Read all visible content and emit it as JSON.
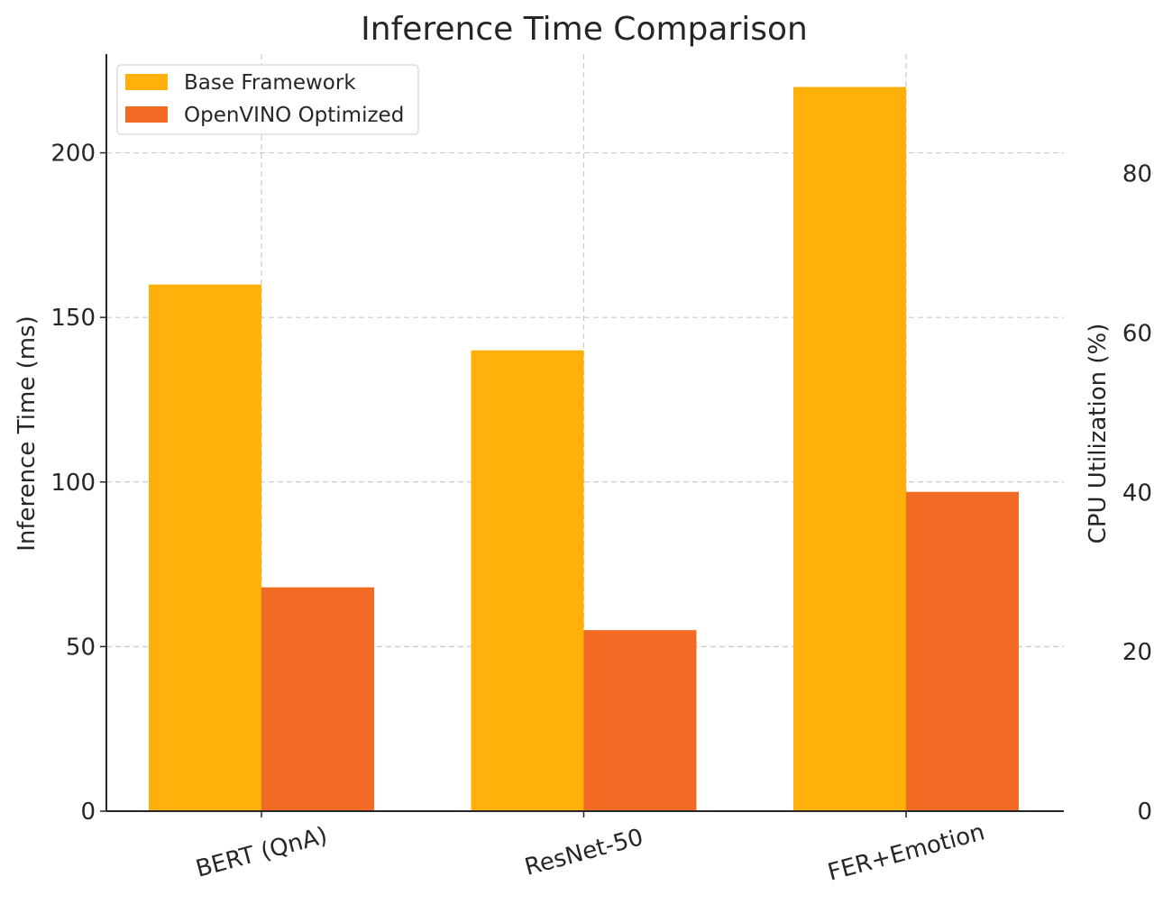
{
  "chart_data": {
    "type": "bar",
    "title": "Inference Time Comparison",
    "xlabel": "",
    "ylabel": "Inference Time (ms)",
    "ylabel_right": "CPU Utilization (%)",
    "categories": [
      "BERT (QnA)",
      "ResNet-50",
      "FER+Emotion"
    ],
    "series": [
      {
        "name": "Base Framework",
        "values": [
          160,
          140,
          220
        ],
        "color": "#FFB00A"
      },
      {
        "name": "OpenVINO Optimized",
        "values": [
          68,
          55,
          97
        ],
        "color": "#F26B24"
      }
    ],
    "ylim": [
      0,
      230
    ],
    "yticks": [
      0,
      50,
      100,
      150,
      200
    ],
    "ylim_right": [
      0,
      95
    ],
    "yticks_right": [
      0,
      20,
      40,
      60,
      80
    ],
    "grid": true,
    "legend_position": "top-left"
  }
}
